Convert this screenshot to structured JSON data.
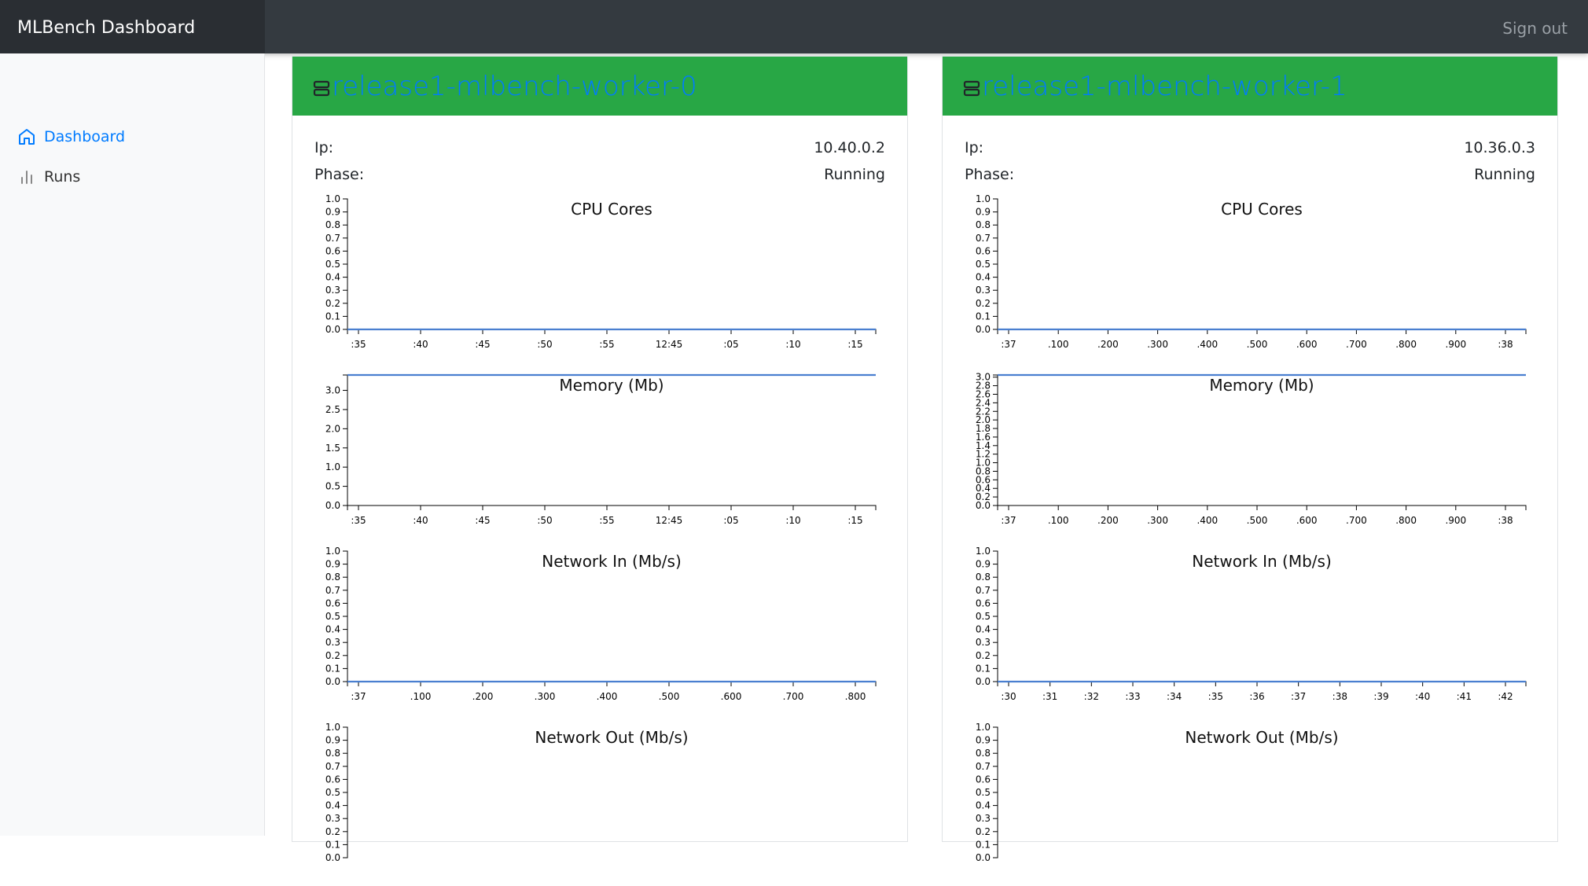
{
  "app": {
    "title": "MLBench Dashboard",
    "signout_label": "Sign out"
  },
  "sidebar": {
    "items": [
      {
        "label": "Dashboard",
        "icon": "home-icon",
        "active": true
      },
      {
        "label": "Runs",
        "icon": "bar-chart-icon",
        "active": false
      }
    ]
  },
  "colors": {
    "header_green": "#28a745",
    "link_blue": "#007bff",
    "series_blue": "#4a7fd0",
    "navbar": "#343a40"
  },
  "workers": [
    {
      "name": "release1-mlbench-worker-0",
      "icon": "server-icon",
      "ip_label": "Ip:",
      "ip": "10.40.0.2",
      "phase_label": "Phase:",
      "phase": "Running",
      "charts": [
        {
          "type": "line",
          "title": "CPU Cores",
          "ylim": [
            0,
            1.0
          ],
          "yticks": [
            "0.0",
            "0.1",
            "0.2",
            "0.3",
            "0.4",
            "0.5",
            "0.6",
            "0.7",
            "0.8",
            "0.9",
            "1.0"
          ],
          "xticks": [
            ":35",
            ":40",
            ":45",
            ":50",
            ":55",
            "12:45",
            ":05",
            ":10",
            ":15"
          ],
          "series": [
            {
              "values": [
                0,
                0,
                0,
                0,
                0,
                0,
                0,
                0,
                0,
                0
              ]
            }
          ]
        },
        {
          "type": "line",
          "title": "Memory (Mb)",
          "ylim": [
            0,
            3.4
          ],
          "yticks": [
            "0.0",
            "0.5",
            "1.0",
            "1.5",
            "2.0",
            "2.5",
            "3.0"
          ],
          "xticks": [
            ":35",
            ":40",
            ":45",
            ":50",
            ":55",
            "12:45",
            ":05",
            ":10",
            ":15"
          ],
          "series": [
            {
              "values": [
                3.4,
                3.4,
                3.4,
                3.4,
                3.4,
                3.4,
                3.4,
                3.4,
                3.4,
                3.4
              ]
            }
          ]
        },
        {
          "type": "line",
          "title": "Network In (Mb/s)",
          "ylim": [
            0,
            1.0
          ],
          "yticks": [
            "0.0",
            "0.1",
            "0.2",
            "0.3",
            "0.4",
            "0.5",
            "0.6",
            "0.7",
            "0.8",
            "0.9",
            "1.0"
          ],
          "xticks": [
            ":37",
            ".100",
            ".200",
            ".300",
            ".400",
            ".500",
            ".600",
            ".700",
            ".800"
          ],
          "series": [
            {
              "values": [
                0,
                0,
                0,
                0,
                0,
                0,
                0,
                0,
                0,
                0
              ]
            }
          ]
        },
        {
          "type": "line",
          "title": "Network Out (Mb/s)",
          "ylim": [
            0,
            1.0
          ],
          "yticks": [
            "0.0",
            "0.1",
            "0.2",
            "0.3",
            "0.4",
            "0.5",
            "0.6",
            "0.7",
            "0.8",
            "0.9",
            "1.0"
          ],
          "xticks": [],
          "series": [
            {
              "values": []
            }
          ]
        }
      ]
    },
    {
      "name": "release1-mlbench-worker-1",
      "icon": "server-icon",
      "ip_label": "Ip:",
      "ip": "10.36.0.3",
      "phase_label": "Phase:",
      "phase": "Running",
      "charts": [
        {
          "type": "line",
          "title": "CPU Cores",
          "ylim": [
            0,
            1.0
          ],
          "yticks": [
            "0.0",
            "0.1",
            "0.2",
            "0.3",
            "0.4",
            "0.5",
            "0.6",
            "0.7",
            "0.8",
            "0.9",
            "1.0"
          ],
          "xticks": [
            ":37",
            ".100",
            ".200",
            ".300",
            ".400",
            ".500",
            ".600",
            ".700",
            ".800",
            ".900",
            ":38"
          ],
          "series": [
            {
              "values": [
                0,
                0,
                0,
                0,
                0,
                0,
                0,
                0,
                0,
                0,
                0
              ]
            }
          ]
        },
        {
          "type": "line",
          "title": "Memory (Mb)",
          "ylim": [
            0,
            3.05
          ],
          "yticks": [
            "0.0",
            "0.2",
            "0.4",
            "0.6",
            "0.8",
            "1.0",
            "1.2",
            "1.4",
            "1.6",
            "1.8",
            "2.0",
            "2.2",
            "2.4",
            "2.6",
            "2.8",
            "3.0"
          ],
          "xticks": [
            ":37",
            ".100",
            ".200",
            ".300",
            ".400",
            ".500",
            ".600",
            ".700",
            ".800",
            ".900",
            ":38"
          ],
          "series": [
            {
              "values": [
                3.05,
                3.05,
                3.05,
                3.05,
                3.05,
                3.05,
                3.05,
                3.05,
                3.05,
                3.05,
                3.05
              ]
            }
          ]
        },
        {
          "type": "line",
          "title": "Network In (Mb/s)",
          "ylim": [
            0,
            1.0
          ],
          "yticks": [
            "0.0",
            "0.1",
            "0.2",
            "0.3",
            "0.4",
            "0.5",
            "0.6",
            "0.7",
            "0.8",
            "0.9",
            "1.0"
          ],
          "xticks": [
            ":30",
            ":31",
            ":32",
            ":33",
            ":34",
            ":35",
            ":36",
            ":37",
            ":38",
            ":39",
            ":40",
            ":41",
            ":42"
          ],
          "series": [
            {
              "values": [
                0,
                0,
                0,
                0,
                0,
                0,
                0,
                0,
                0,
                0,
                0,
                0,
                0
              ]
            }
          ]
        },
        {
          "type": "line",
          "title": "Network Out (Mb/s)",
          "ylim": [
            0,
            1.0
          ],
          "yticks": [
            "0.0",
            "0.1",
            "0.2",
            "0.3",
            "0.4",
            "0.5",
            "0.6",
            "0.7",
            "0.8",
            "0.9",
            "1.0"
          ],
          "xticks": [],
          "series": [
            {
              "values": []
            }
          ]
        }
      ]
    }
  ]
}
